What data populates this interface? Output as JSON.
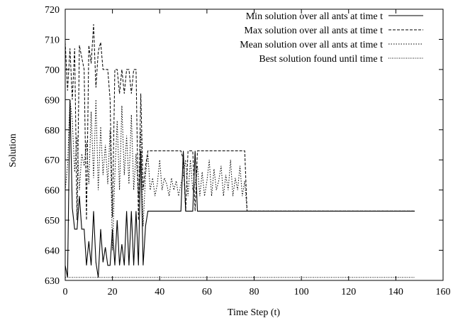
{
  "chart_data": {
    "type": "line",
    "title": "",
    "xlabel": "Time Step (t)",
    "ylabel": "Solution",
    "xlim": [
      0,
      160
    ],
    "ylim": [
      630,
      720
    ],
    "xticks": [
      0,
      20,
      40,
      60,
      80,
      100,
      120,
      140,
      160
    ],
    "yticks": [
      630,
      640,
      650,
      660,
      670,
      680,
      690,
      700,
      710,
      720
    ],
    "grid": false,
    "legend_position": "top-right",
    "series": [
      {
        "name": "Min solution over all ants at time t",
        "style": "solid",
        "color": "#000000",
        "x": [
          0,
          1,
          2,
          3,
          4,
          5,
          6,
          7,
          8,
          9,
          10,
          11,
          12,
          13,
          14,
          15,
          16,
          17,
          18,
          19,
          20,
          21,
          22,
          23,
          24,
          25,
          26,
          27,
          28,
          29,
          30,
          31,
          32,
          33,
          34,
          35,
          36,
          40,
          45,
          49,
          50,
          51,
          52,
          54,
          55,
          56,
          60,
          70,
          76,
          77,
          80,
          100,
          120,
          140,
          148
        ],
        "values": [
          635,
          631,
          690,
          654,
          647,
          647,
          658,
          647,
          647,
          635,
          643,
          635,
          653,
          636,
          631,
          647,
          636,
          641,
          635,
          635,
          647,
          635,
          650,
          635,
          642,
          635,
          653,
          635,
          653,
          635,
          653,
          635,
          673,
          635,
          648,
          653,
          653,
          653,
          653,
          653,
          673,
          653,
          653,
          653,
          673,
          653,
          653,
          653,
          653,
          653,
          653,
          653,
          653,
          653,
          653
        ]
      },
      {
        "name": "Max solution over all ants at time t",
        "style": "dashed",
        "color": "#000000",
        "x": [
          0,
          1,
          2,
          3,
          4,
          5,
          6,
          7,
          8,
          9,
          10,
          11,
          12,
          13,
          14,
          15,
          16,
          17,
          18,
          19,
          20,
          21,
          22,
          23,
          24,
          25,
          26,
          27,
          28,
          29,
          30,
          31,
          32,
          33,
          34,
          35,
          36,
          40,
          45,
          49,
          50,
          51,
          52,
          53,
          54,
          55,
          56,
          60,
          65,
          70,
          75,
          76,
          77,
          80,
          100,
          120,
          140,
          148
        ],
        "values": [
          709,
          693,
          707,
          690,
          707,
          650,
          708,
          704,
          700,
          650,
          708,
          702,
          715,
          694,
          706,
          709,
          700,
          700,
          700,
          690,
          651,
          700,
          700,
          692,
          700,
          692,
          700,
          700,
          692,
          700,
          700,
          650,
          692,
          660,
          668,
          673,
          673,
          673,
          673,
          673,
          670,
          653,
          673,
          673,
          673,
          653,
          673,
          673,
          673,
          673,
          673,
          673,
          653,
          653,
          653,
          653,
          653,
          653
        ]
      },
      {
        "name": "Mean solution over all ants at time t",
        "style": "dotted",
        "color": "#000000",
        "x": [
          0,
          1,
          2,
          3,
          4,
          5,
          6,
          7,
          8,
          9,
          10,
          11,
          12,
          13,
          14,
          15,
          16,
          17,
          18,
          19,
          20,
          21,
          22,
          23,
          24,
          25,
          26,
          27,
          28,
          29,
          30,
          31,
          32,
          33,
          34,
          35,
          36,
          37,
          38,
          39,
          40,
          41,
          42,
          43,
          44,
          45,
          46,
          47,
          48,
          49,
          50,
          51,
          52,
          53,
          54,
          55,
          56,
          57,
          58,
          59,
          60,
          61,
          62,
          63,
          64,
          65,
          66,
          67,
          68,
          69,
          70,
          71,
          72,
          73,
          74,
          75,
          76,
          77,
          80,
          100,
          120,
          140,
          148
        ],
        "values": [
          660,
          668,
          690,
          683,
          666,
          678,
          660,
          672,
          668,
          676,
          662,
          686,
          664,
          690,
          660,
          681,
          665,
          675,
          662,
          680,
          640,
          665,
          683,
          660,
          688,
          665,
          678,
          662,
          685,
          660,
          672,
          658,
          680,
          648,
          665,
          672,
          660,
          664,
          658,
          662,
          670,
          660,
          664,
          662,
          658,
          664,
          660,
          663,
          658,
          662,
          665,
          670,
          658,
          670,
          660,
          662,
          668,
          658,
          666,
          658,
          663,
          670,
          658,
          667,
          660,
          663,
          668,
          658,
          665,
          660,
          670,
          658,
          664,
          660,
          668,
          658,
          663,
          653,
          653,
          653,
          653,
          653,
          653
        ]
      },
      {
        "name": "Best solution found until time t",
        "style": "dotted-fine",
        "color": "#000000",
        "x": [
          0,
          148
        ],
        "values": [
          631,
          631
        ]
      }
    ]
  }
}
